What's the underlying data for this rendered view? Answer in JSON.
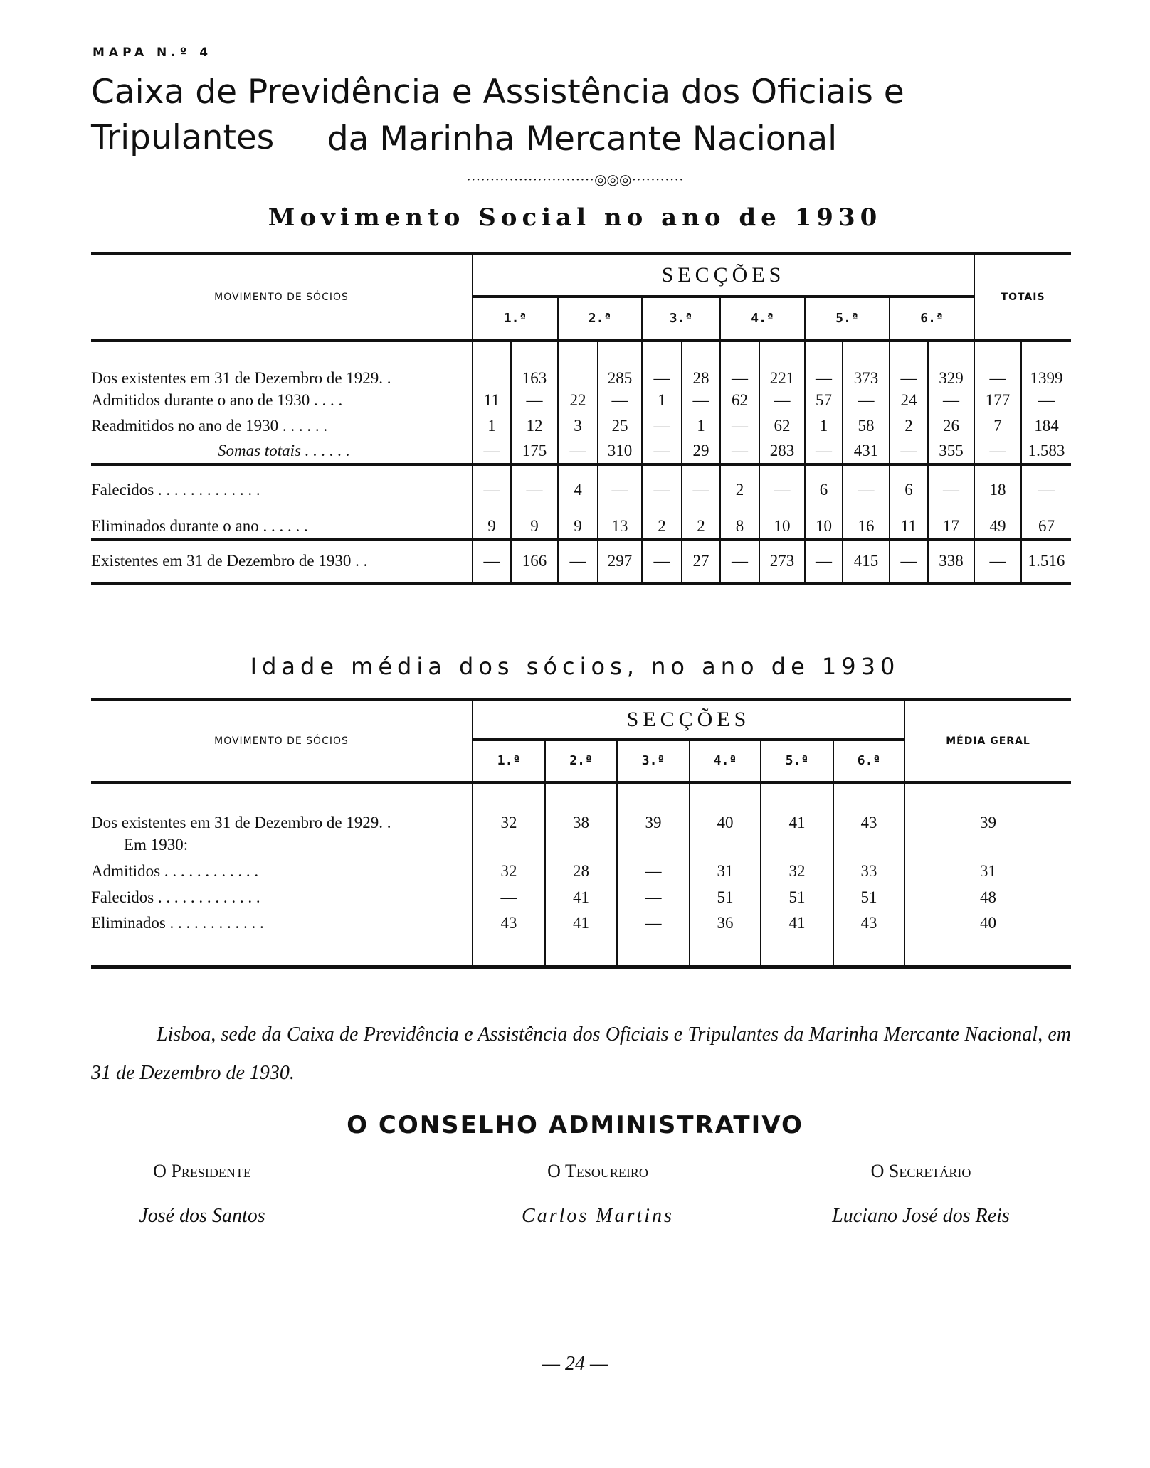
{
  "header": {
    "map_label": "MAPA N.º 4",
    "title_line1": "Caixa de Previdência e Assistência dos Oficiais e Tripulantes",
    "title_line2": "da Marinha Mercante Nacional",
    "ornament": "···························◎◎◎···········"
  },
  "table1": {
    "title": "Movimento Social no ano de 1930",
    "row_header": "MOVIMENTO DE SÓCIOS",
    "group_header": "SECÇÕES",
    "totals_header": "TOTAIS",
    "sections": [
      "1.ª",
      "2.ª",
      "3.ª",
      "4.ª",
      "5.ª",
      "6.ª"
    ],
    "rows": [
      {
        "label": "Dos existentes em 31 de Dezembro de 1929.  .",
        "values": [
          "",
          "163",
          "",
          "285",
          "—",
          "28",
          "—",
          "221",
          "—",
          "373",
          "—",
          "329",
          "—",
          "1399"
        ]
      },
      {
        "label": "Admitidos durante o ano de 1930  . . . .",
        "values": [
          "11",
          "—",
          "22",
          "—",
          "1",
          "—",
          "62",
          "—",
          "57",
          "—",
          "24",
          "—",
          "177",
          "—"
        ]
      },
      {
        "label": "Readmitidos no ano de 1930 . . . . . .",
        "values": [
          "1",
          "12",
          "3",
          "25",
          "—",
          "1",
          "—",
          "62",
          "1",
          "58",
          "2",
          "26",
          "7",
          "184"
        ]
      },
      {
        "label": "Somas totais . . . . . .",
        "italic": true,
        "values": [
          "—",
          "175",
          "—",
          "310",
          "—",
          "29",
          "—",
          "283",
          "—",
          "431",
          "—",
          "355",
          "—",
          "1.583"
        ]
      },
      {
        "label": "Falecidos . . . . . . . . . . . . .",
        "values": [
          "—",
          "—",
          "4",
          "—",
          "—",
          "—",
          "2",
          "—",
          "6",
          "—",
          "6",
          "—",
          "18",
          "—"
        ]
      },
      {
        "label": "Eliminados durante o ano  . . . . . .",
        "values": [
          "9",
          "9",
          "9",
          "13",
          "2",
          "2",
          "8",
          "10",
          "10",
          "16",
          "11",
          "17",
          "49",
          "67"
        ]
      },
      {
        "label": "Existentes em 31 de Dezembro de 1930  . .",
        "values": [
          "—",
          "166",
          "—",
          "297",
          "—",
          "27",
          "—",
          "273",
          "—",
          "415",
          "—",
          "338",
          "—",
          "1.516"
        ]
      }
    ]
  },
  "table2": {
    "title": "Idade média dos sócios, no ano de 1930",
    "row_header": "MOVIMENTO DE SÓCIOS",
    "group_header": "SECÇÕES",
    "avg_header": "MÉDIA GERAL",
    "sections": [
      "1.ª",
      "2.ª",
      "3.ª",
      "4.ª",
      "5.ª",
      "6.ª"
    ],
    "rows": [
      {
        "label": "Dos existentes em 31 de Dezembro de 1929.  .",
        "values": [
          "32",
          "38",
          "39",
          "40",
          "41",
          "43",
          "39"
        ]
      },
      {
        "label": "Em 1930:",
        "indent": true,
        "values": [
          "",
          "",
          "",
          "",
          "",
          "",
          ""
        ]
      },
      {
        "label": "Admitidos  . . . . . . . . . . . .",
        "values": [
          "32",
          "28",
          "—",
          "31",
          "32",
          "33",
          "31"
        ]
      },
      {
        "label": "Falecidos . . . . . . . . . . . . .",
        "values": [
          "—",
          "41",
          "—",
          "51",
          "51",
          "51",
          "48"
        ]
      },
      {
        "label": "Eliminados  . . . . . . . . . . . .",
        "values": [
          "43",
          "41",
          "—",
          "36",
          "41",
          "43",
          "40"
        ]
      }
    ]
  },
  "footer": {
    "statement": "Lisboa, sede da Caixa de Previdência e Assistência dos Oficiais e Tripulantes da Marinha Mercante Nacional, em 31 de Dezembro de 1930.",
    "council": "O CONSELHO ADMINISTRATIVO",
    "officers": [
      {
        "role": "O Presidente",
        "name": "José dos Santos"
      },
      {
        "role": "O Tesoureiro",
        "name": "Carlos Martins"
      },
      {
        "role": "O Secretário",
        "name": "Luciano José dos Reis"
      }
    ],
    "page_number": "— 24 —"
  }
}
